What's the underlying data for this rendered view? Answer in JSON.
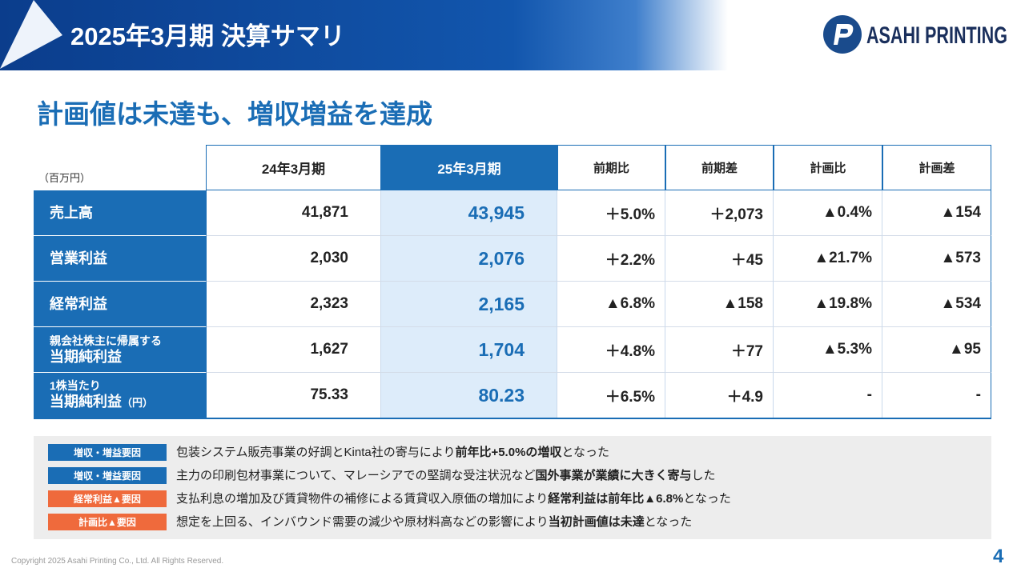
{
  "header": {
    "title": "2025年3月期 決算サマリ",
    "logo_text": "ASAHI PRINTING"
  },
  "subtitle": "計画値は未達も、増収増益を達成",
  "table": {
    "unit": "（百万円）",
    "columns": [
      "24年3月期",
      "25年3月期",
      "前期比",
      "前期差",
      "計画比",
      "計画差"
    ],
    "rows": [
      {
        "label": {
          "main": "売上高"
        },
        "cells": [
          "41,871",
          "43,945",
          "＋5.0%",
          "＋2,073",
          "▲0.4%",
          "▲154"
        ]
      },
      {
        "label": {
          "main": "営業利益"
        },
        "cells": [
          "2,030",
          "2,076",
          "＋2.2%",
          "＋45",
          "▲21.7%",
          "▲573"
        ]
      },
      {
        "label": {
          "main": "経常利益"
        },
        "cells": [
          "2,323",
          "2,165",
          "▲6.8%",
          "▲158",
          "▲19.8%",
          "▲534"
        ]
      },
      {
        "label": {
          "small": "親会社株主に帰属する",
          "main": "当期純利益"
        },
        "cells": [
          "1,627",
          "1,704",
          "＋4.8%",
          "＋77",
          "▲5.3%",
          "▲95"
        ]
      },
      {
        "label": {
          "small": "1株当たり",
          "main": "当期純利益",
          "suffix": "（円）"
        },
        "cells": [
          "75.33",
          "80.23",
          "＋6.5%",
          "＋4.9",
          "-",
          "-"
        ]
      }
    ]
  },
  "notes": [
    {
      "tag": "増収・増益要因",
      "tag_color": "#1a6db5",
      "before": "包装システム販売事業の好調とKinta社の寄与により",
      "emph": "前年比+5.0%の増収",
      "after": "となった"
    },
    {
      "tag": "増収・増益要因",
      "tag_color": "#1a6db5",
      "before": "主力の印刷包材事業について、マレーシアでの堅調な受注状況など",
      "emph": "国外事業が業績に大きく寄与",
      "after": "した"
    },
    {
      "tag": "経常利益▲要因",
      "tag_color": "#ef6a3c",
      "before": "支払利息の増加及び賃貸物件の補修による賃貸収入原価の増加により",
      "emph": "経常利益は前年比▲6.8%",
      "after": "となった"
    },
    {
      "tag": "計画比▲要因",
      "tag_color": "#ef6a3c",
      "before": "想定を上回る、インバウンド需要の減少や原材料高などの影響により",
      "emph": "当初計画値は未達",
      "after": "となった"
    }
  ],
  "footer": {
    "copyright": "Copyright 2025 Asahi Printing Co., Ltd. All Rights Reserved.",
    "page": "4"
  }
}
